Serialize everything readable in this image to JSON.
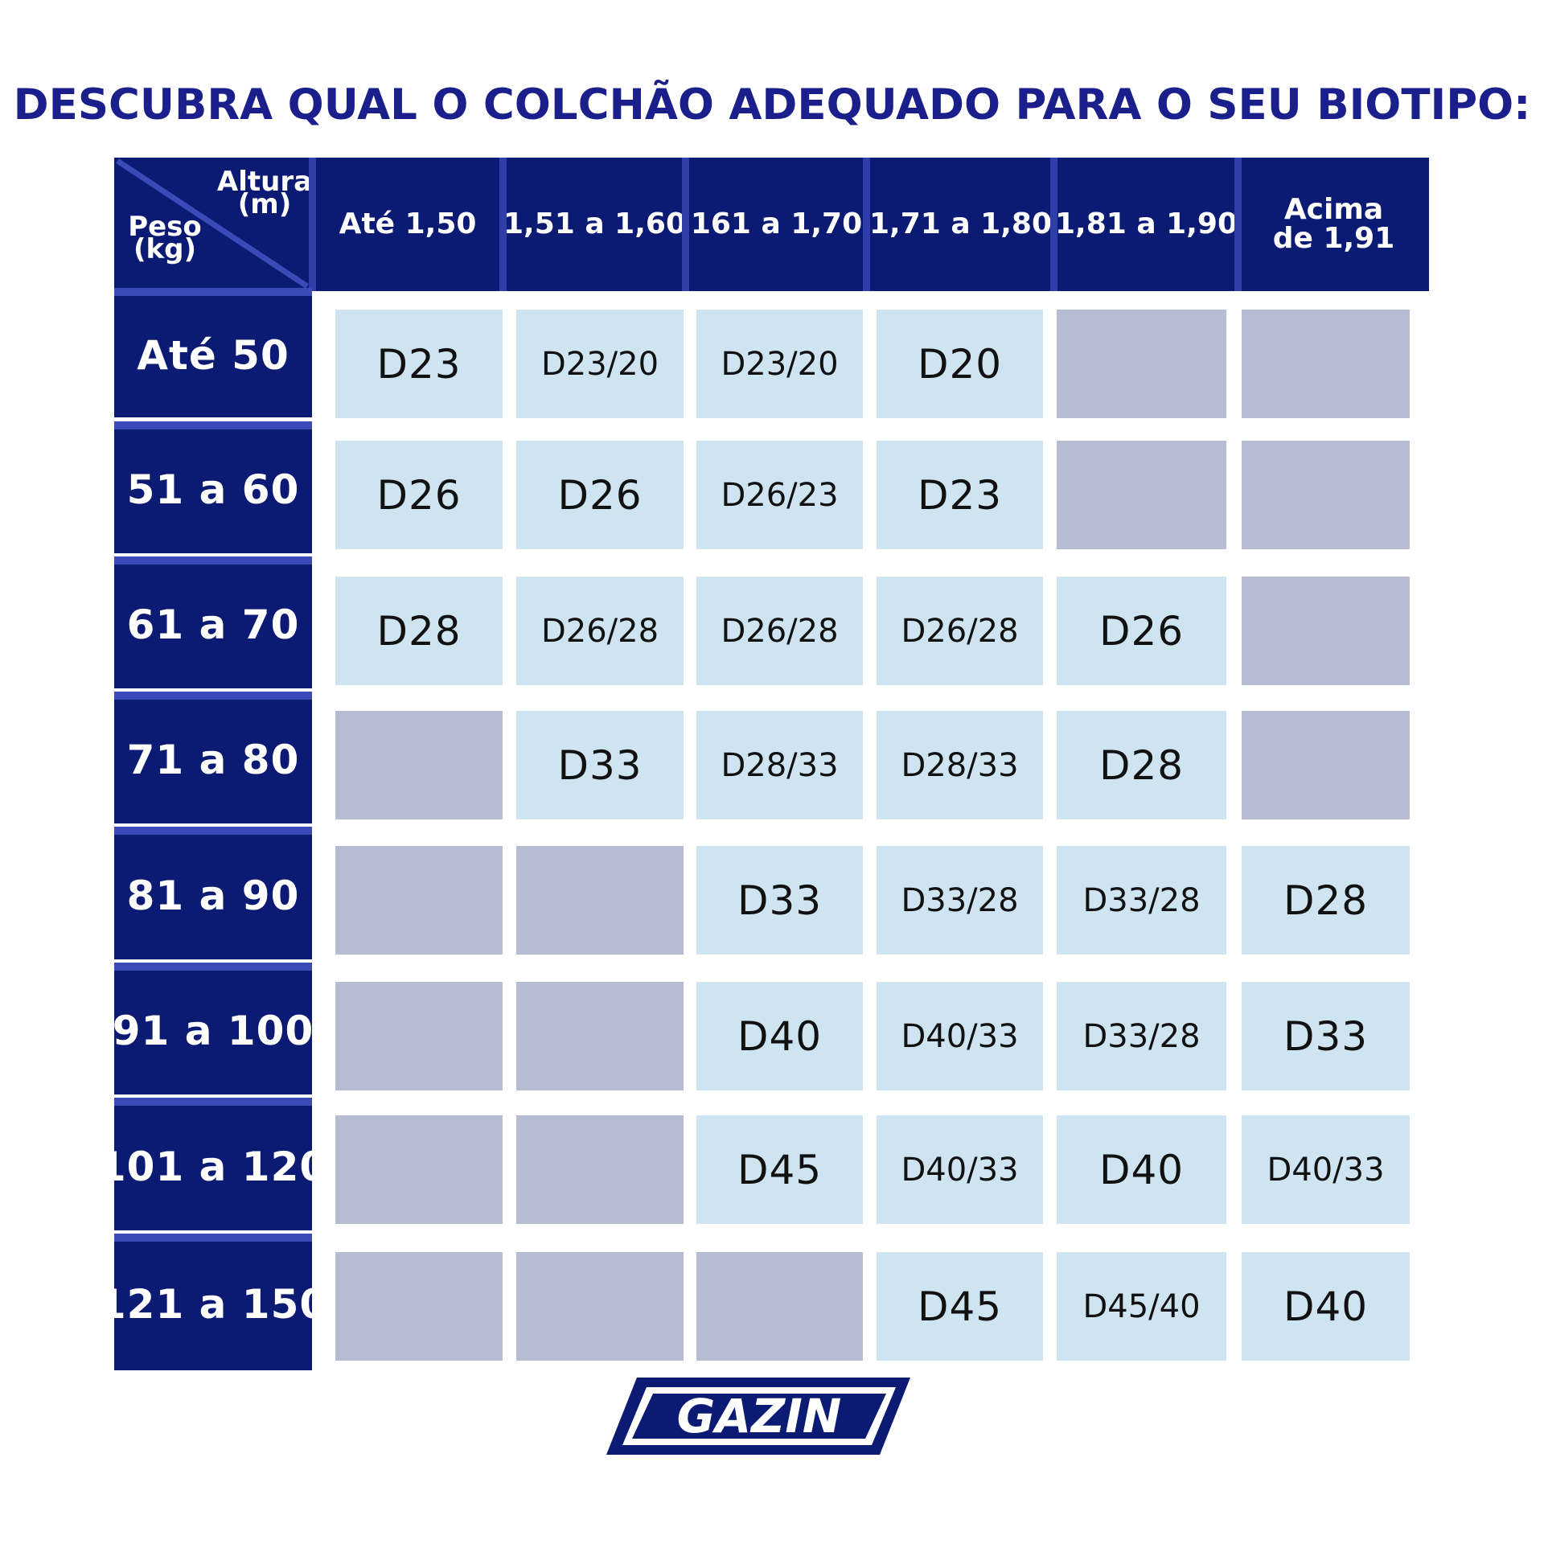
{
  "title": "DESCUBRA QUAL O COLCHÃO ADEQUADO PARA O SEU BIOTIPO:",
  "corner": {
    "height_label": "Altura",
    "height_unit": "(m)",
    "weight_label": "Peso",
    "weight_unit": "(kg)"
  },
  "columns": [
    "Até 1,50",
    "1,51 a 1,60",
    "161 a 1,70",
    "1,71 a 1,80",
    "1,81 a 1,90",
    "Acima\nde 1,91"
  ],
  "rows": [
    {
      "label": "Até 50",
      "cells": [
        "D23",
        "D23/20",
        "D23/20",
        "D20",
        "",
        ""
      ]
    },
    {
      "label": "51 a 60",
      "cells": [
        "D26",
        "D26",
        "D26/23",
        "D23",
        "",
        ""
      ]
    },
    {
      "label": "61 a 70",
      "cells": [
        "D28",
        "D26/28",
        "D26/28",
        "D26/28",
        "D26",
        ""
      ]
    },
    {
      "label": "71 a 80",
      "cells": [
        "",
        "D33",
        "D28/33",
        "D28/33",
        "D28",
        ""
      ]
    },
    {
      "label": "81 a 90",
      "cells": [
        "",
        "",
        "D33",
        "D33/28",
        "D33/28",
        "D28"
      ]
    },
    {
      "label": "91 a 100",
      "cells": [
        "",
        "",
        "D40",
        "D40/33",
        "D33/28",
        "D33"
      ]
    },
    {
      "label": "101 a 120",
      "cells": [
        "",
        "",
        "D45",
        "D40/33",
        "D40",
        "D40/33"
      ]
    },
    {
      "label": "121 a 150",
      "cells": [
        "",
        "",
        "",
        "D45",
        "D45/40",
        "D40"
      ]
    }
  ],
  "logo": {
    "text": "GAZIN"
  },
  "colors": {
    "navy": "#0b1a72",
    "title_blue": "#1a1f8c",
    "filled_cell": "#cfe4f1",
    "empty_cell": "#b5bcd4"
  }
}
